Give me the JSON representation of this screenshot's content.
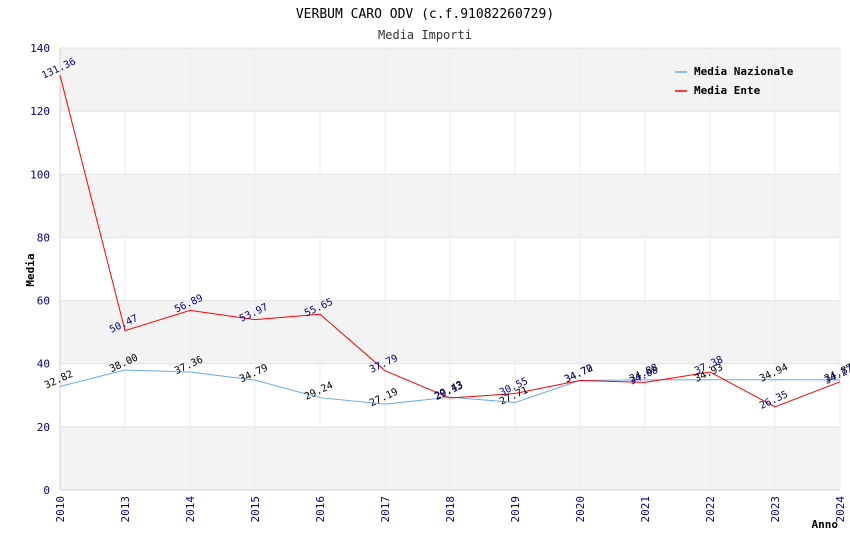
{
  "chart_data": {
    "type": "line",
    "title": "VERBUM CARO ODV (c.f.91082260729)",
    "subtitle": "Media Importi",
    "xlabel": "Anno",
    "ylabel": "Media",
    "ylim": [
      0,
      140
    ],
    "yticks": [
      0,
      20,
      40,
      60,
      80,
      100,
      120,
      140
    ],
    "categories": [
      "2010",
      "2013",
      "2014",
      "2015",
      "2016",
      "2017",
      "2018",
      "2019",
      "2020",
      "2021",
      "2022",
      "2023",
      "2024"
    ],
    "series": [
      {
        "name": "Media Nazionale",
        "color": "#6aa9e9",
        "values": [
          32.82,
          38.0,
          37.36,
          34.79,
          29.24,
          27.19,
          29.43,
          27.71,
          34.72,
          34.88,
          34.93,
          34.94,
          34.87
        ],
        "labels": [
          "32.82",
          "38.00",
          "37.36",
          "34.79",
          "29.24",
          "27.19",
          "29.43",
          "27.71",
          "34.72",
          "34.88",
          "34.93",
          "34.94",
          "34.87"
        ]
      },
      {
        "name": "Media Ente",
        "color": "#ff0000",
        "values": [
          131.36,
          50.47,
          56.89,
          53.97,
          55.65,
          37.79,
          29.13,
          30.55,
          34.7,
          34.08,
          37.38,
          26.35,
          34.27
        ],
        "labels": [
          "131.36",
          "50.47",
          "56.89",
          "53.97",
          "55.65",
          "37.79",
          "29.13",
          "30.55",
          "34.70",
          "34.08",
          "37.38",
          "26.35",
          "34.27"
        ]
      }
    ],
    "legend": {
      "position": "top-right"
    }
  }
}
